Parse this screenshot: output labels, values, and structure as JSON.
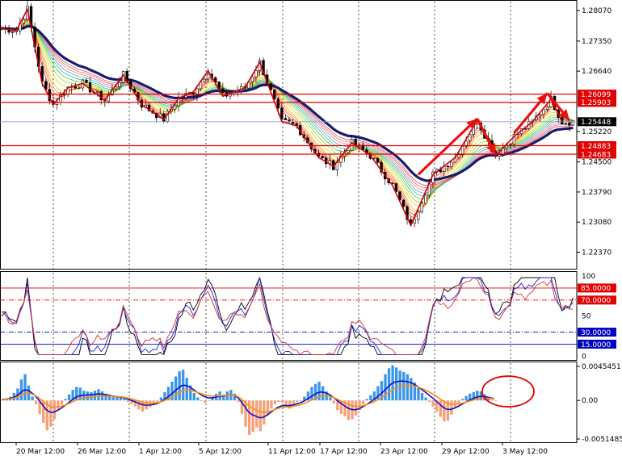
{
  "chart_data": [
    {
      "type": "candlestick",
      "pane": "price",
      "y_ticks": [
        "1.28070",
        "1.27350",
        "1.26640",
        "1.25220",
        "1.24500",
        "1.23790",
        "1.23080",
        "1.22370"
      ],
      "y_tick_values": [
        1.2807,
        1.2735,
        1.2664,
        1.2522,
        1.245,
        1.2379,
        1.2308,
        1.2237
      ],
      "ylim": [
        1.2198,
        1.2828
      ],
      "horizontal_levels": [
        {
          "label": "1.26099",
          "value": 1.26099,
          "color": "#e00000",
          "boxed": true
        },
        {
          "label": "1.25903",
          "value": 1.25903,
          "color": "#e00000",
          "boxed": true
        },
        {
          "label": "1.24883",
          "value": 1.24883,
          "color": "#e00000",
          "boxed": true
        },
        {
          "label": "1.24683",
          "value": 1.24683,
          "color": "#e00000",
          "boxed": true
        }
      ],
      "current_price": {
        "label": "1.25448",
        "value": 1.25448,
        "color": "#000000"
      },
      "zigzag_points": [
        [
          0,
          1.2765
        ],
        [
          4,
          1.276
        ],
        [
          7,
          1.281
        ],
        [
          11,
          1.2635
        ],
        [
          14,
          1.2585
        ],
        [
          18,
          1.2625
        ],
        [
          22,
          1.2635
        ],
        [
          28,
          1.2595
        ],
        [
          33,
          1.2655
        ],
        [
          38,
          1.2585
        ],
        [
          44,
          1.255
        ],
        [
          48,
          1.26
        ],
        [
          52,
          1.2615
        ],
        [
          56,
          1.2665
        ],
        [
          60,
          1.2605
        ],
        [
          66,
          1.2625
        ],
        [
          70,
          1.2685
        ],
        [
          76,
          1.2545
        ],
        [
          80,
          1.2535
        ],
        [
          86,
          1.246
        ],
        [
          90,
          1.244
        ],
        [
          95,
          1.2495
        ],
        [
          100,
          1.2465
        ],
        [
          106,
          1.2395
        ],
        [
          111,
          1.23
        ],
        [
          117,
          1.242
        ],
        [
          123,
          1.246
        ],
        [
          129,
          1.2548
        ],
        [
          134,
          1.2465
        ],
        [
          139,
          1.251
        ],
        [
          144,
          1.2545
        ],
        [
          149,
          1.2598
        ],
        [
          152,
          1.2545
        ]
      ],
      "arrows": [
        {
          "from": [
            113,
            1.242
          ],
          "to": [
            129,
            1.2552
          ]
        },
        {
          "from": [
            129,
            1.2552
          ],
          "to": [
            134,
            1.2467
          ]
        },
        {
          "from": [
            139,
            1.2518
          ],
          "to": [
            148,
            1.2612
          ]
        },
        {
          "from": [
            148,
            1.2612
          ],
          "to": [
            154,
            1.2548
          ]
        }
      ]
    },
    {
      "type": "line",
      "pane": "oscillator",
      "y_ticks": [
        "100",
        "85.0000",
        "70.0000",
        "50",
        "30.0000",
        "15.0000",
        "0"
      ],
      "y_tick_values": [
        100,
        85,
        70,
        50,
        30,
        15,
        0
      ],
      "ylim": [
        0,
        100
      ],
      "levels": [
        {
          "label": "85.0000",
          "value": 85,
          "color": "#e00000",
          "style": "solid",
          "boxed": true
        },
        {
          "label": "70.0000",
          "value": 70,
          "color": "#e00000",
          "style": "dashdot",
          "boxed": true
        },
        {
          "label": "30.0000",
          "value": 30,
          "color": "#0000c0",
          "style": "dashdot",
          "boxed": true
        },
        {
          "label": "15.0000",
          "value": 15,
          "color": "#0000c0",
          "style": "solid",
          "boxed": true
        }
      ]
    },
    {
      "type": "bar",
      "pane": "macd",
      "y_ticks": [
        "0.0045451",
        "0.00",
        "-0.0051485"
      ],
      "y_tick_values": [
        0.0045451,
        0.0,
        -0.0051485
      ],
      "ylim": [
        -0.0051485,
        0.0045451
      ],
      "histogram_values": [
        0.0002,
        0.0003,
        0.0005,
        0.001,
        0.0016,
        0.0028,
        0.0035,
        0.002,
        0.0005,
        -0.0005,
        -0.0018,
        -0.003,
        -0.004,
        -0.0035,
        -0.0025,
        -0.0012,
        -0.0006,
        0.0002,
        0.0008,
        0.0014,
        0.0018,
        0.0017,
        0.0013,
        0.0012,
        0.0011,
        0.0013,
        0.0015,
        0.0012,
        0.0009,
        0.0007,
        0.0006,
        0.0005,
        0.0004,
        0.0002,
        -0.0002,
        -0.0005,
        -0.0008,
        -0.0012,
        -0.0015,
        -0.0012,
        -0.0009,
        -0.0006,
        -0.0003,
        0.0004,
        0.0011,
        0.0018,
        0.0025,
        0.0032,
        0.0039,
        0.0041,
        0.003,
        0.002,
        0.001,
        0.0004,
        0.0,
        -0.0003,
        -0.0001,
        0.0004,
        0.0009,
        0.0012,
        0.0008,
        0.0012,
        0.0014,
        0.0009,
        -0.0002,
        -0.0018,
        -0.0035,
        -0.0046,
        -0.0042,
        -0.0036,
        -0.0041,
        -0.0032,
        -0.002,
        -0.0011,
        -0.0005,
        -0.0002,
        -0.0003,
        -0.0007,
        -0.0011,
        -0.0007,
        -0.0002,
        0.0,
        0.0005,
        0.0012,
        0.0018,
        0.0022,
        0.0025,
        0.0019,
        0.0012,
        0.0004,
        -0.0004,
        -0.0013,
        -0.0018,
        -0.0021,
        -0.0026,
        -0.0025,
        -0.002,
        -0.0013,
        -0.0005,
        0.0002,
        0.0007,
        0.0012,
        0.0019,
        0.0026,
        0.0035,
        0.0043,
        0.0047,
        0.0044,
        0.004,
        0.0038,
        0.0035,
        0.003,
        0.0024,
        0.0017,
        0.001,
        0.0004,
        -0.0002,
        -0.0008,
        -0.0015,
        -0.0022,
        -0.0028,
        -0.0027,
        -0.0019,
        -0.001,
        -0.0004,
        0.0002,
        0.0006,
        0.0009,
        0.0011,
        0.0013,
        0.0012,
        0.0008,
        0.0004,
        0.0001,
        -0.0001
      ],
      "annotation": {
        "type": "ellipse",
        "color": "#e00000"
      }
    }
  ],
  "time_axis": {
    "labels": [
      "20 Mar 12:00",
      "26 Mar 12:00",
      "1 Apr 12:00",
      "5 Apr 12:00",
      "11 Apr 12:00",
      "17 Apr 12:00",
      "23 Apr 12:00",
      "29 Apr 12:00",
      "3 May 12:00"
    ]
  }
}
